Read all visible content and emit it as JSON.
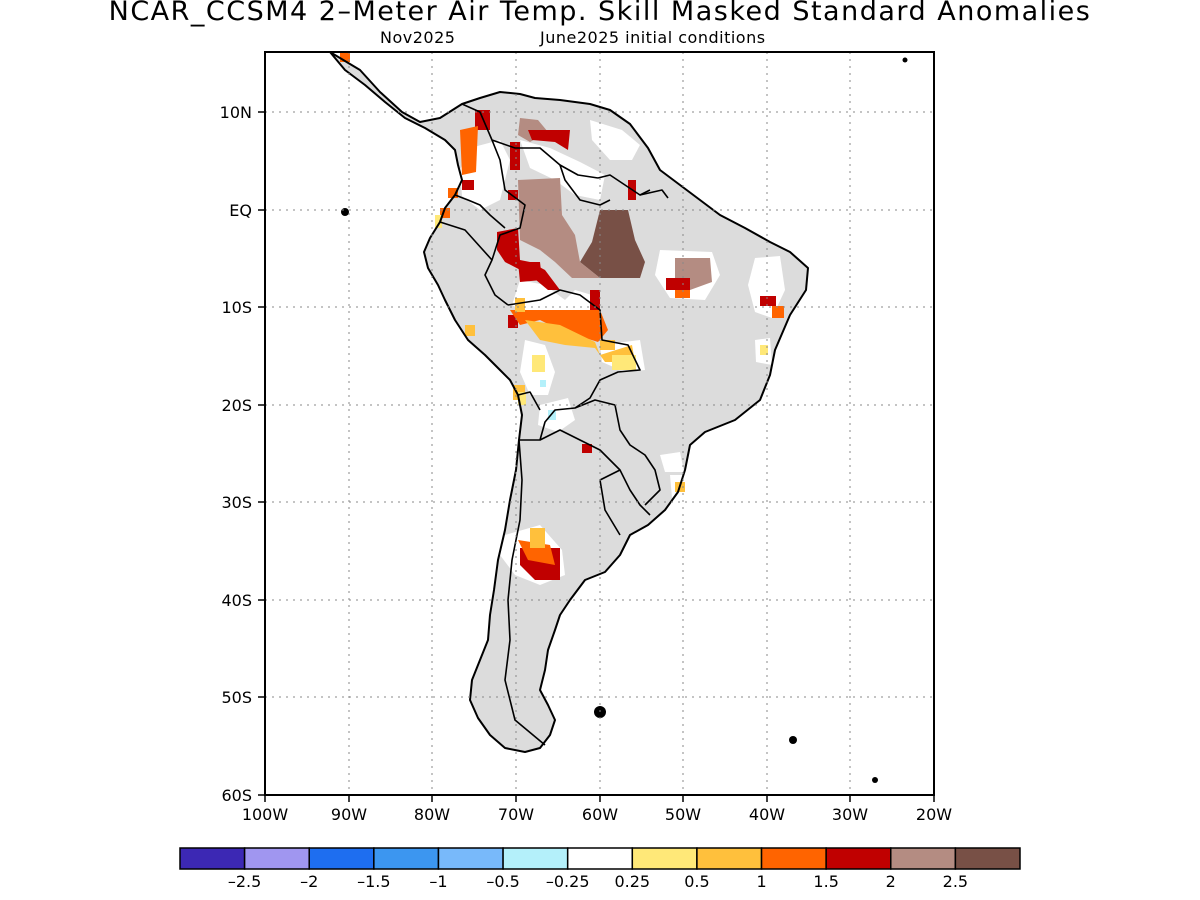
{
  "title": "NCAR_CCSM4 2–Meter Air Temp. Skill Masked Standard Anomalies",
  "subtitle": {
    "month": "Nov2025",
    "initial_conditions": "June2025 initial conditions"
  },
  "map": {
    "projection": "lat-lon",
    "lon_range": [
      -100,
      -20
    ],
    "lat_range": [
      -60,
      15
    ],
    "lat_labels": [
      "10N",
      "EQ",
      "10S",
      "20S",
      "30S",
      "40S",
      "50S",
      "60S"
    ],
    "lon_labels": [
      "100W",
      "90W",
      "80W",
      "70W",
      "60W",
      "50W",
      "40W",
      "30W",
      "20W"
    ],
    "grid": "dotted",
    "mask_color": "#dcdcdc"
  },
  "colorbar": {
    "colors": [
      "#3c28b4",
      "#a096f0",
      "#1e6ef0",
      "#3c96f0",
      "#78b9fa",
      "#b4f0fa",
      "#ffffff",
      "#ffe878",
      "#ffc03c",
      "#ff6400",
      "#c00000",
      "#b48c82",
      "#785046"
    ],
    "labels": [
      "–2.5",
      "–2",
      "–1.5",
      "–1",
      "–0.5",
      "–0.25",
      "0.25",
      "0.5",
      "1",
      "1.5",
      "2",
      "2.5"
    ]
  }
}
